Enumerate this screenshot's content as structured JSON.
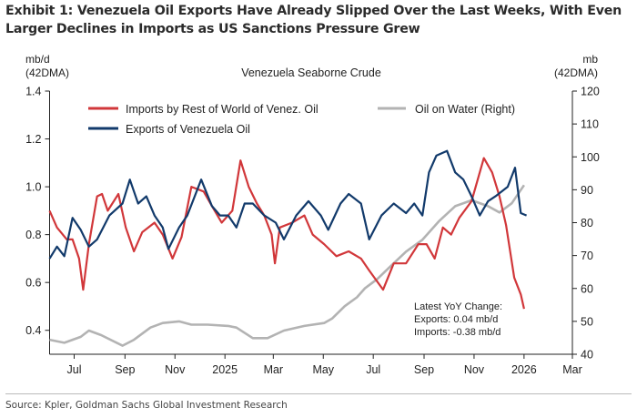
{
  "title": "Exhibit 1: Venezuela Oil Exports Have Already Slipped Over the Last Weeks, With Even Larger Declines in Imports as US Sanctions Pressure Grew",
  "source": "Source: Kpler, Goldman Sachs Global Investment Research",
  "chart_data": {
    "type": "line",
    "title": "Venezuela Seaborne Crude",
    "ylabel_left": [
      "mb/d",
      "(42DMA)"
    ],
    "ylabel_right": [
      "mb",
      "(42DMA)"
    ],
    "xlim": [
      "2024-06-01",
      "2026-03-01"
    ],
    "ylim_left": [
      0.3,
      1.4
    ],
    "ylim_right": [
      40,
      120
    ],
    "yticks_left": [
      0.4,
      0.6,
      0.8,
      1.0,
      1.2,
      1.4
    ],
    "yticks_left_labels": [
      "0.4",
      "0.6",
      "0.8",
      "1.0",
      "1.2",
      "1.4"
    ],
    "yticks_right": [
      40,
      50,
      60,
      70,
      80,
      90,
      100,
      110,
      120
    ],
    "yticks_right_labels": [
      "40",
      "50",
      "60",
      "70",
      "80",
      "90",
      "100",
      "110",
      "120"
    ],
    "xticks": [
      {
        "date": "2024-07-01",
        "label": "Jul"
      },
      {
        "date": "2024-09-01",
        "label": "Sep"
      },
      {
        "date": "2024-11-01",
        "label": "Nov"
      },
      {
        "date": "2025-01-01",
        "label": "2025"
      },
      {
        "date": "2025-03-01",
        "label": "Mar"
      },
      {
        "date": "2025-05-01",
        "label": "May"
      },
      {
        "date": "2025-07-01",
        "label": "Jul"
      },
      {
        "date": "2025-09-01",
        "label": "Sep"
      },
      {
        "date": "2025-11-01",
        "label": "Nov"
      },
      {
        "date": "2026-01-01",
        "label": "2026"
      },
      {
        "date": "2026-03-01",
        "label": "Mar"
      }
    ],
    "grid": false,
    "legend": "top",
    "series": [
      {
        "name": "Imports by Rest of World of Venez. Oil",
        "axis": "left",
        "color": "#d1373a",
        "points": [
          [
            "2024-06-01",
            0.9
          ],
          [
            "2024-06-10",
            0.83
          ],
          [
            "2024-06-22",
            0.78
          ],
          [
            "2024-06-29",
            0.78
          ],
          [
            "2024-07-07",
            0.7
          ],
          [
            "2024-07-12",
            0.57
          ],
          [
            "2024-07-19",
            0.76
          ],
          [
            "2024-07-29",
            0.96
          ],
          [
            "2024-08-04",
            0.97
          ],
          [
            "2024-08-11",
            0.9
          ],
          [
            "2024-08-24",
            0.97
          ],
          [
            "2024-09-02",
            0.83
          ],
          [
            "2024-09-12",
            0.73
          ],
          [
            "2024-09-22",
            0.81
          ],
          [
            "2024-10-07",
            0.85
          ],
          [
            "2024-10-17",
            0.8
          ],
          [
            "2024-10-29",
            0.7
          ],
          [
            "2024-11-09",
            0.79
          ],
          [
            "2024-11-21",
            1.0
          ],
          [
            "2024-12-06",
            0.98
          ],
          [
            "2024-12-16",
            0.92
          ],
          [
            "2024-12-28",
            0.85
          ],
          [
            "2025-01-10",
            0.9
          ],
          [
            "2025-01-20",
            1.11
          ],
          [
            "2025-01-30",
            1.0
          ],
          [
            "2025-02-09",
            0.93
          ],
          [
            "2025-02-18",
            0.88
          ],
          [
            "2025-02-27",
            0.8
          ],
          [
            "2025-03-03",
            0.68
          ],
          [
            "2025-03-09",
            0.83
          ],
          [
            "2025-03-24",
            0.85
          ],
          [
            "2025-04-08",
            0.88
          ],
          [
            "2025-04-18",
            0.8
          ],
          [
            "2025-05-02",
            0.76
          ],
          [
            "2025-05-17",
            0.71
          ],
          [
            "2025-06-01",
            0.73
          ],
          [
            "2025-06-16",
            0.7
          ],
          [
            "2025-06-26",
            0.65
          ],
          [
            "2025-07-13",
            0.57
          ],
          [
            "2025-07-26",
            0.68
          ],
          [
            "2025-08-10",
            0.68
          ],
          [
            "2025-08-25",
            0.76
          ],
          [
            "2025-09-04",
            0.76
          ],
          [
            "2025-09-14",
            0.7
          ],
          [
            "2025-09-24",
            0.83
          ],
          [
            "2025-10-04",
            0.8
          ],
          [
            "2025-10-14",
            0.87
          ],
          [
            "2025-10-29",
            0.94
          ],
          [
            "2025-11-13",
            1.12
          ],
          [
            "2025-11-23",
            1.06
          ],
          [
            "2025-12-02",
            0.96
          ],
          [
            "2025-12-10",
            0.84
          ],
          [
            "2025-12-15",
            0.73
          ],
          [
            "2025-12-20",
            0.62
          ],
          [
            "2025-12-28",
            0.55
          ],
          [
            "2026-01-01",
            0.49
          ]
        ]
      },
      {
        "name": "Exports of Venezuela Oil",
        "axis": "left",
        "color": "#123a6b",
        "points": [
          [
            "2024-06-01",
            0.7
          ],
          [
            "2024-06-10",
            0.75
          ],
          [
            "2024-06-19",
            0.71
          ],
          [
            "2024-06-29",
            0.87
          ],
          [
            "2024-07-09",
            0.82
          ],
          [
            "2024-07-19",
            0.75
          ],
          [
            "2024-07-29",
            0.78
          ],
          [
            "2024-08-13",
            0.88
          ],
          [
            "2024-08-29",
            0.93
          ],
          [
            "2024-09-07",
            1.03
          ],
          [
            "2024-09-17",
            0.93
          ],
          [
            "2024-09-27",
            0.96
          ],
          [
            "2024-10-07",
            0.88
          ],
          [
            "2024-10-17",
            0.83
          ],
          [
            "2024-10-24",
            0.74
          ],
          [
            "2024-11-06",
            0.83
          ],
          [
            "2024-11-16",
            0.88
          ],
          [
            "2024-12-03",
            1.03
          ],
          [
            "2024-12-16",
            0.92
          ],
          [
            "2024-12-26",
            0.88
          ],
          [
            "2025-01-05",
            0.88
          ],
          [
            "2025-01-15",
            0.83
          ],
          [
            "2025-01-25",
            0.93
          ],
          [
            "2025-02-04",
            0.93
          ],
          [
            "2025-02-18",
            0.88
          ],
          [
            "2025-03-04",
            0.85
          ],
          [
            "2025-03-14",
            0.78
          ],
          [
            "2025-03-29",
            0.88
          ],
          [
            "2025-04-13",
            0.94
          ],
          [
            "2025-04-28",
            0.88
          ],
          [
            "2025-05-07",
            0.82
          ],
          [
            "2025-05-22",
            0.93
          ],
          [
            "2025-06-01",
            0.97
          ],
          [
            "2025-06-16",
            0.93
          ],
          [
            "2025-06-26",
            0.78
          ],
          [
            "2025-07-11",
            0.88
          ],
          [
            "2025-07-26",
            0.93
          ],
          [
            "2025-08-10",
            0.89
          ],
          [
            "2025-08-20",
            0.93
          ],
          [
            "2025-08-30",
            0.88
          ],
          [
            "2025-09-07",
            1.06
          ],
          [
            "2025-09-16",
            1.13
          ],
          [
            "2025-09-29",
            1.15
          ],
          [
            "2025-10-09",
            1.06
          ],
          [
            "2025-10-19",
            1.03
          ],
          [
            "2025-10-29",
            0.96
          ],
          [
            "2025-11-08",
            0.88
          ],
          [
            "2025-11-18",
            0.94
          ],
          [
            "2025-11-27",
            0.96
          ],
          [
            "2025-12-12",
            1.0
          ],
          [
            "2025-12-21",
            1.08
          ],
          [
            "2025-12-28",
            0.89
          ],
          [
            "2026-01-04",
            0.88
          ]
        ]
      },
      {
        "name": "Oil on Water (Right)",
        "axis": "right",
        "color": "#b3b3b3",
        "points": [
          [
            "2024-06-01",
            44.4
          ],
          [
            "2024-06-19",
            43.5
          ],
          [
            "2024-07-09",
            45.3
          ],
          [
            "2024-07-19",
            47.2
          ],
          [
            "2024-08-03",
            45.8
          ],
          [
            "2024-08-29",
            42.6
          ],
          [
            "2024-09-12",
            44.4
          ],
          [
            "2024-10-02",
            48.1
          ],
          [
            "2024-10-17",
            49.5
          ],
          [
            "2024-11-06",
            50.0
          ],
          [
            "2024-11-21",
            49.0
          ],
          [
            "2024-12-11",
            49.0
          ],
          [
            "2025-01-05",
            48.6
          ],
          [
            "2025-01-15",
            48.1
          ],
          [
            "2025-02-04",
            44.9
          ],
          [
            "2025-02-22",
            44.9
          ],
          [
            "2025-03-14",
            47.2
          ],
          [
            "2025-04-08",
            48.6
          ],
          [
            "2025-05-02",
            49.5
          ],
          [
            "2025-05-12",
            50.9
          ],
          [
            "2025-05-27",
            54.6
          ],
          [
            "2025-06-11",
            57.3
          ],
          [
            "2025-06-21",
            60.1
          ],
          [
            "2025-07-06",
            62.9
          ],
          [
            "2025-07-21",
            66.5
          ],
          [
            "2025-08-10",
            71.2
          ],
          [
            "2025-08-30",
            74.8
          ],
          [
            "2025-09-19",
            80.4
          ],
          [
            "2025-10-09",
            85.0
          ],
          [
            "2025-10-29",
            86.8
          ],
          [
            "2025-11-18",
            85.0
          ],
          [
            "2025-12-02",
            83.1
          ],
          [
            "2025-12-17",
            85.9
          ],
          [
            "2026-01-01",
            91.4
          ]
        ]
      }
    ],
    "annotation": [
      "Latest YoY Change:",
      "Exports: 0.04 mb/d",
      "Imports: -0.38 mb/d"
    ]
  }
}
